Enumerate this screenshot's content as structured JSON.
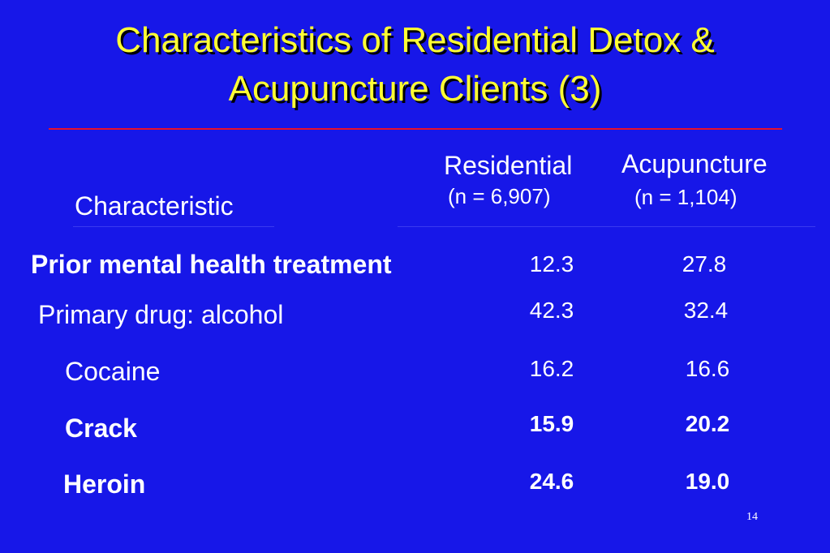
{
  "header": {
    "title_lines": [
      "Characteristics of Residential Detox &",
      "Acupuncture Clients (3)"
    ]
  },
  "table": {
    "columns": [
      {
        "label": "Characteristic"
      },
      {
        "label": "Residential",
        "sublabel": "(n = 6,907)"
      },
      {
        "label": "Acupuncture",
        "sublabel": "(n = 1,104)"
      }
    ],
    "rows": [
      [
        "Prior mental health treatment",
        "12.3",
        "27.8"
      ],
      [
        "Primary drug: alcohol",
        "42.3",
        "32.4"
      ],
      [
        "Cocaine",
        "16.2",
        "16.6"
      ],
      [
        "Crack",
        "15.9",
        "20.2"
      ],
      [
        "Heroin",
        "24.6",
        "19.0"
      ]
    ]
  },
  "footer": {
    "page_number": "14"
  }
}
